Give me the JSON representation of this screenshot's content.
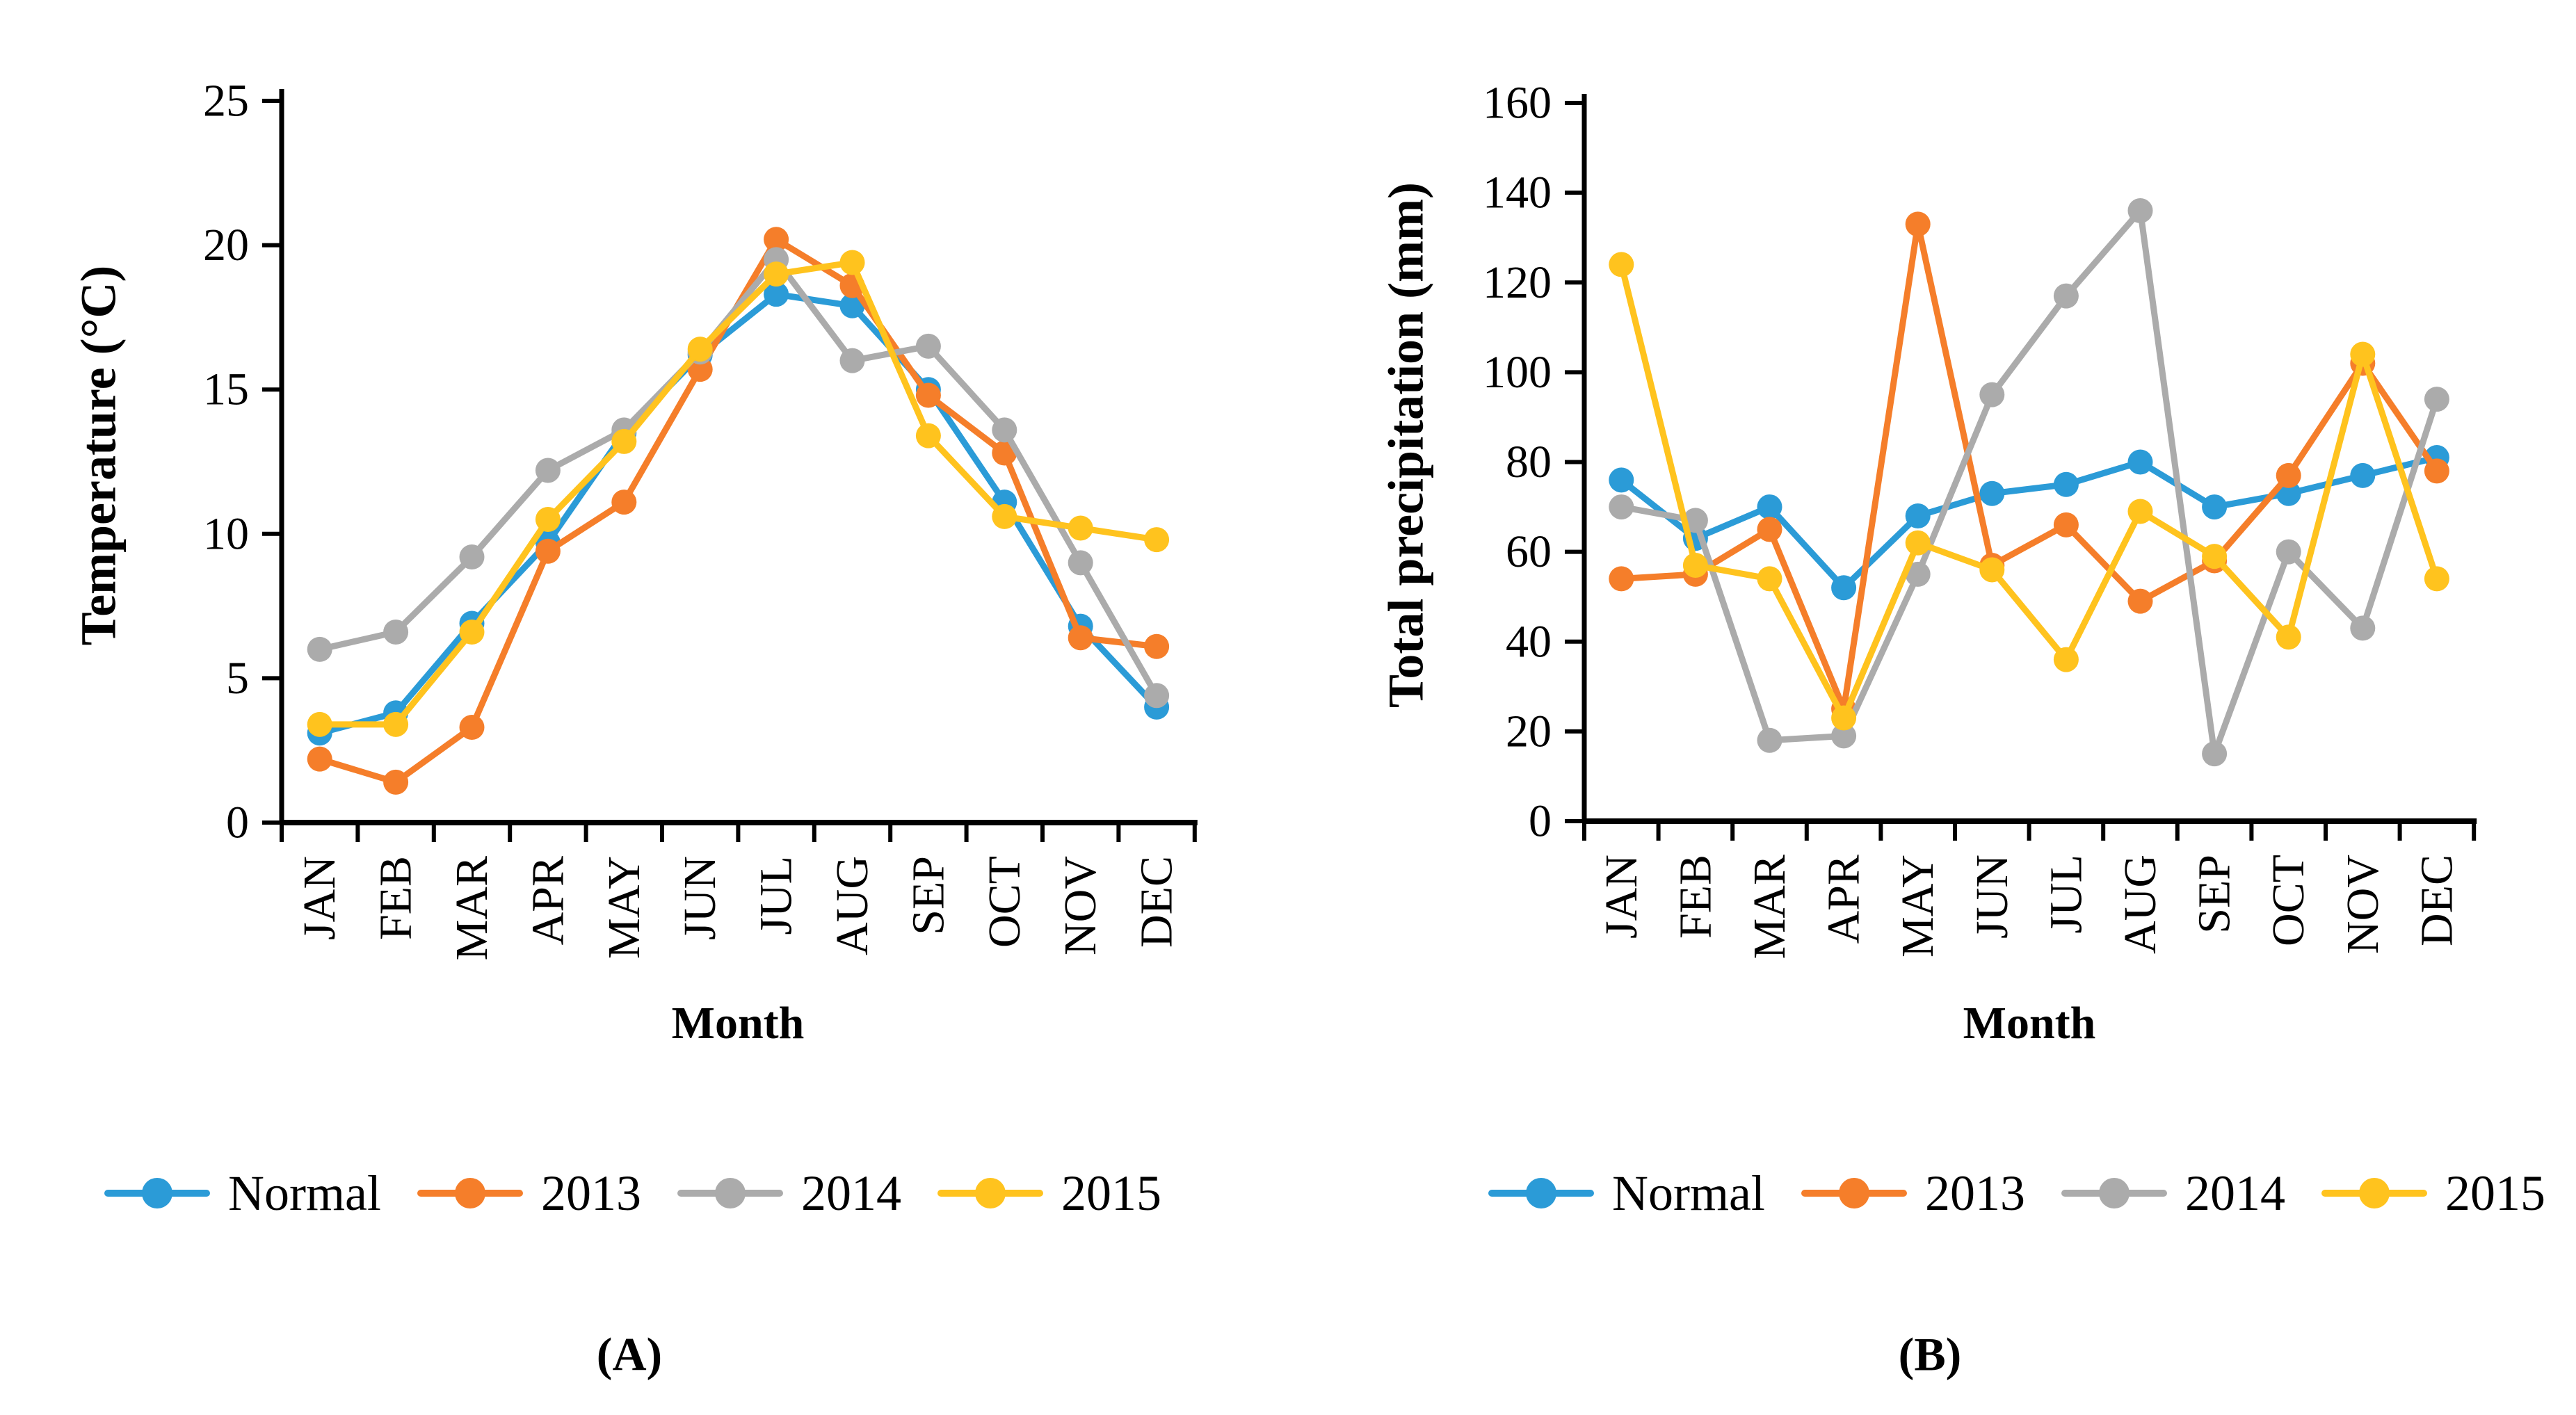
{
  "figure": {
    "background": "#ffffff",
    "axis_color": "#000000"
  },
  "chart_data": [
    {
      "id": "A",
      "type": "line",
      "caption": "(A)",
      "title": "",
      "xlabel": "Month",
      "ylabel": "Temperature (°C)",
      "ylim": [
        0,
        25
      ],
      "yticks": [
        0,
        5,
        10,
        15,
        20,
        25
      ],
      "grid": false,
      "legend_position": "bottom",
      "categories": [
        "JAN",
        "FEB",
        "MAR",
        "APR",
        "MAY",
        "JUN",
        "JUL",
        "AUG",
        "SEP",
        "OCT",
        "NOV",
        "DEC"
      ],
      "series": [
        {
          "name": "Normal",
          "color": "#2B9BD7",
          "values": [
            3.1,
            3.8,
            6.9,
            9.7,
            13.5,
            16.2,
            18.3,
            17.9,
            15.0,
            11.1,
            6.8,
            4.0
          ]
        },
        {
          "name": "2013",
          "color": "#F57E2A",
          "values": [
            2.2,
            1.4,
            3.3,
            9.4,
            11.1,
            15.7,
            20.2,
            18.6,
            14.8,
            12.8,
            6.4,
            6.1
          ]
        },
        {
          "name": "2014",
          "color": "#ABABAB",
          "values": [
            6.0,
            6.6,
            9.2,
            12.2,
            13.6,
            16.3,
            19.5,
            16.0,
            16.5,
            13.6,
            9.0,
            4.4
          ]
        },
        {
          "name": "2015",
          "color": "#FFC31E",
          "values": [
            3.4,
            3.4,
            6.6,
            10.5,
            13.2,
            16.4,
            19.0,
            19.4,
            13.4,
            10.6,
            10.2,
            9.8
          ]
        }
      ]
    },
    {
      "id": "B",
      "type": "line",
      "caption": "(B)",
      "title": "",
      "xlabel": "Month",
      "ylabel": "Total precipitation (mm)",
      "ylim": [
        0,
        160
      ],
      "yticks": [
        0,
        20,
        40,
        60,
        80,
        100,
        120,
        140,
        160
      ],
      "grid": false,
      "legend_position": "bottom",
      "categories": [
        "JAN",
        "FEB",
        "MAR",
        "APR",
        "MAY",
        "JUN",
        "JUL",
        "AUG",
        "SEP",
        "OCT",
        "NOV",
        "DEC"
      ],
      "series": [
        {
          "name": "Normal",
          "color": "#2B9BD7",
          "values": [
            76,
            63,
            70,
            52,
            68,
            73,
            75,
            80,
            70,
            73,
            77,
            81
          ]
        },
        {
          "name": "2013",
          "color": "#F57E2A",
          "values": [
            54,
            55,
            65,
            25,
            133,
            57,
            66,
            49,
            58,
            77,
            102,
            78
          ]
        },
        {
          "name": "2014",
          "color": "#ABABAB",
          "values": [
            70,
            67,
            18,
            19,
            55,
            95,
            117,
            136,
            15,
            60,
            43,
            94
          ]
        },
        {
          "name": "2015",
          "color": "#FFC31E",
          "values": [
            124,
            57,
            54,
            23,
            62,
            56,
            36,
            69,
            59,
            41,
            104,
            54
          ]
        }
      ]
    }
  ]
}
